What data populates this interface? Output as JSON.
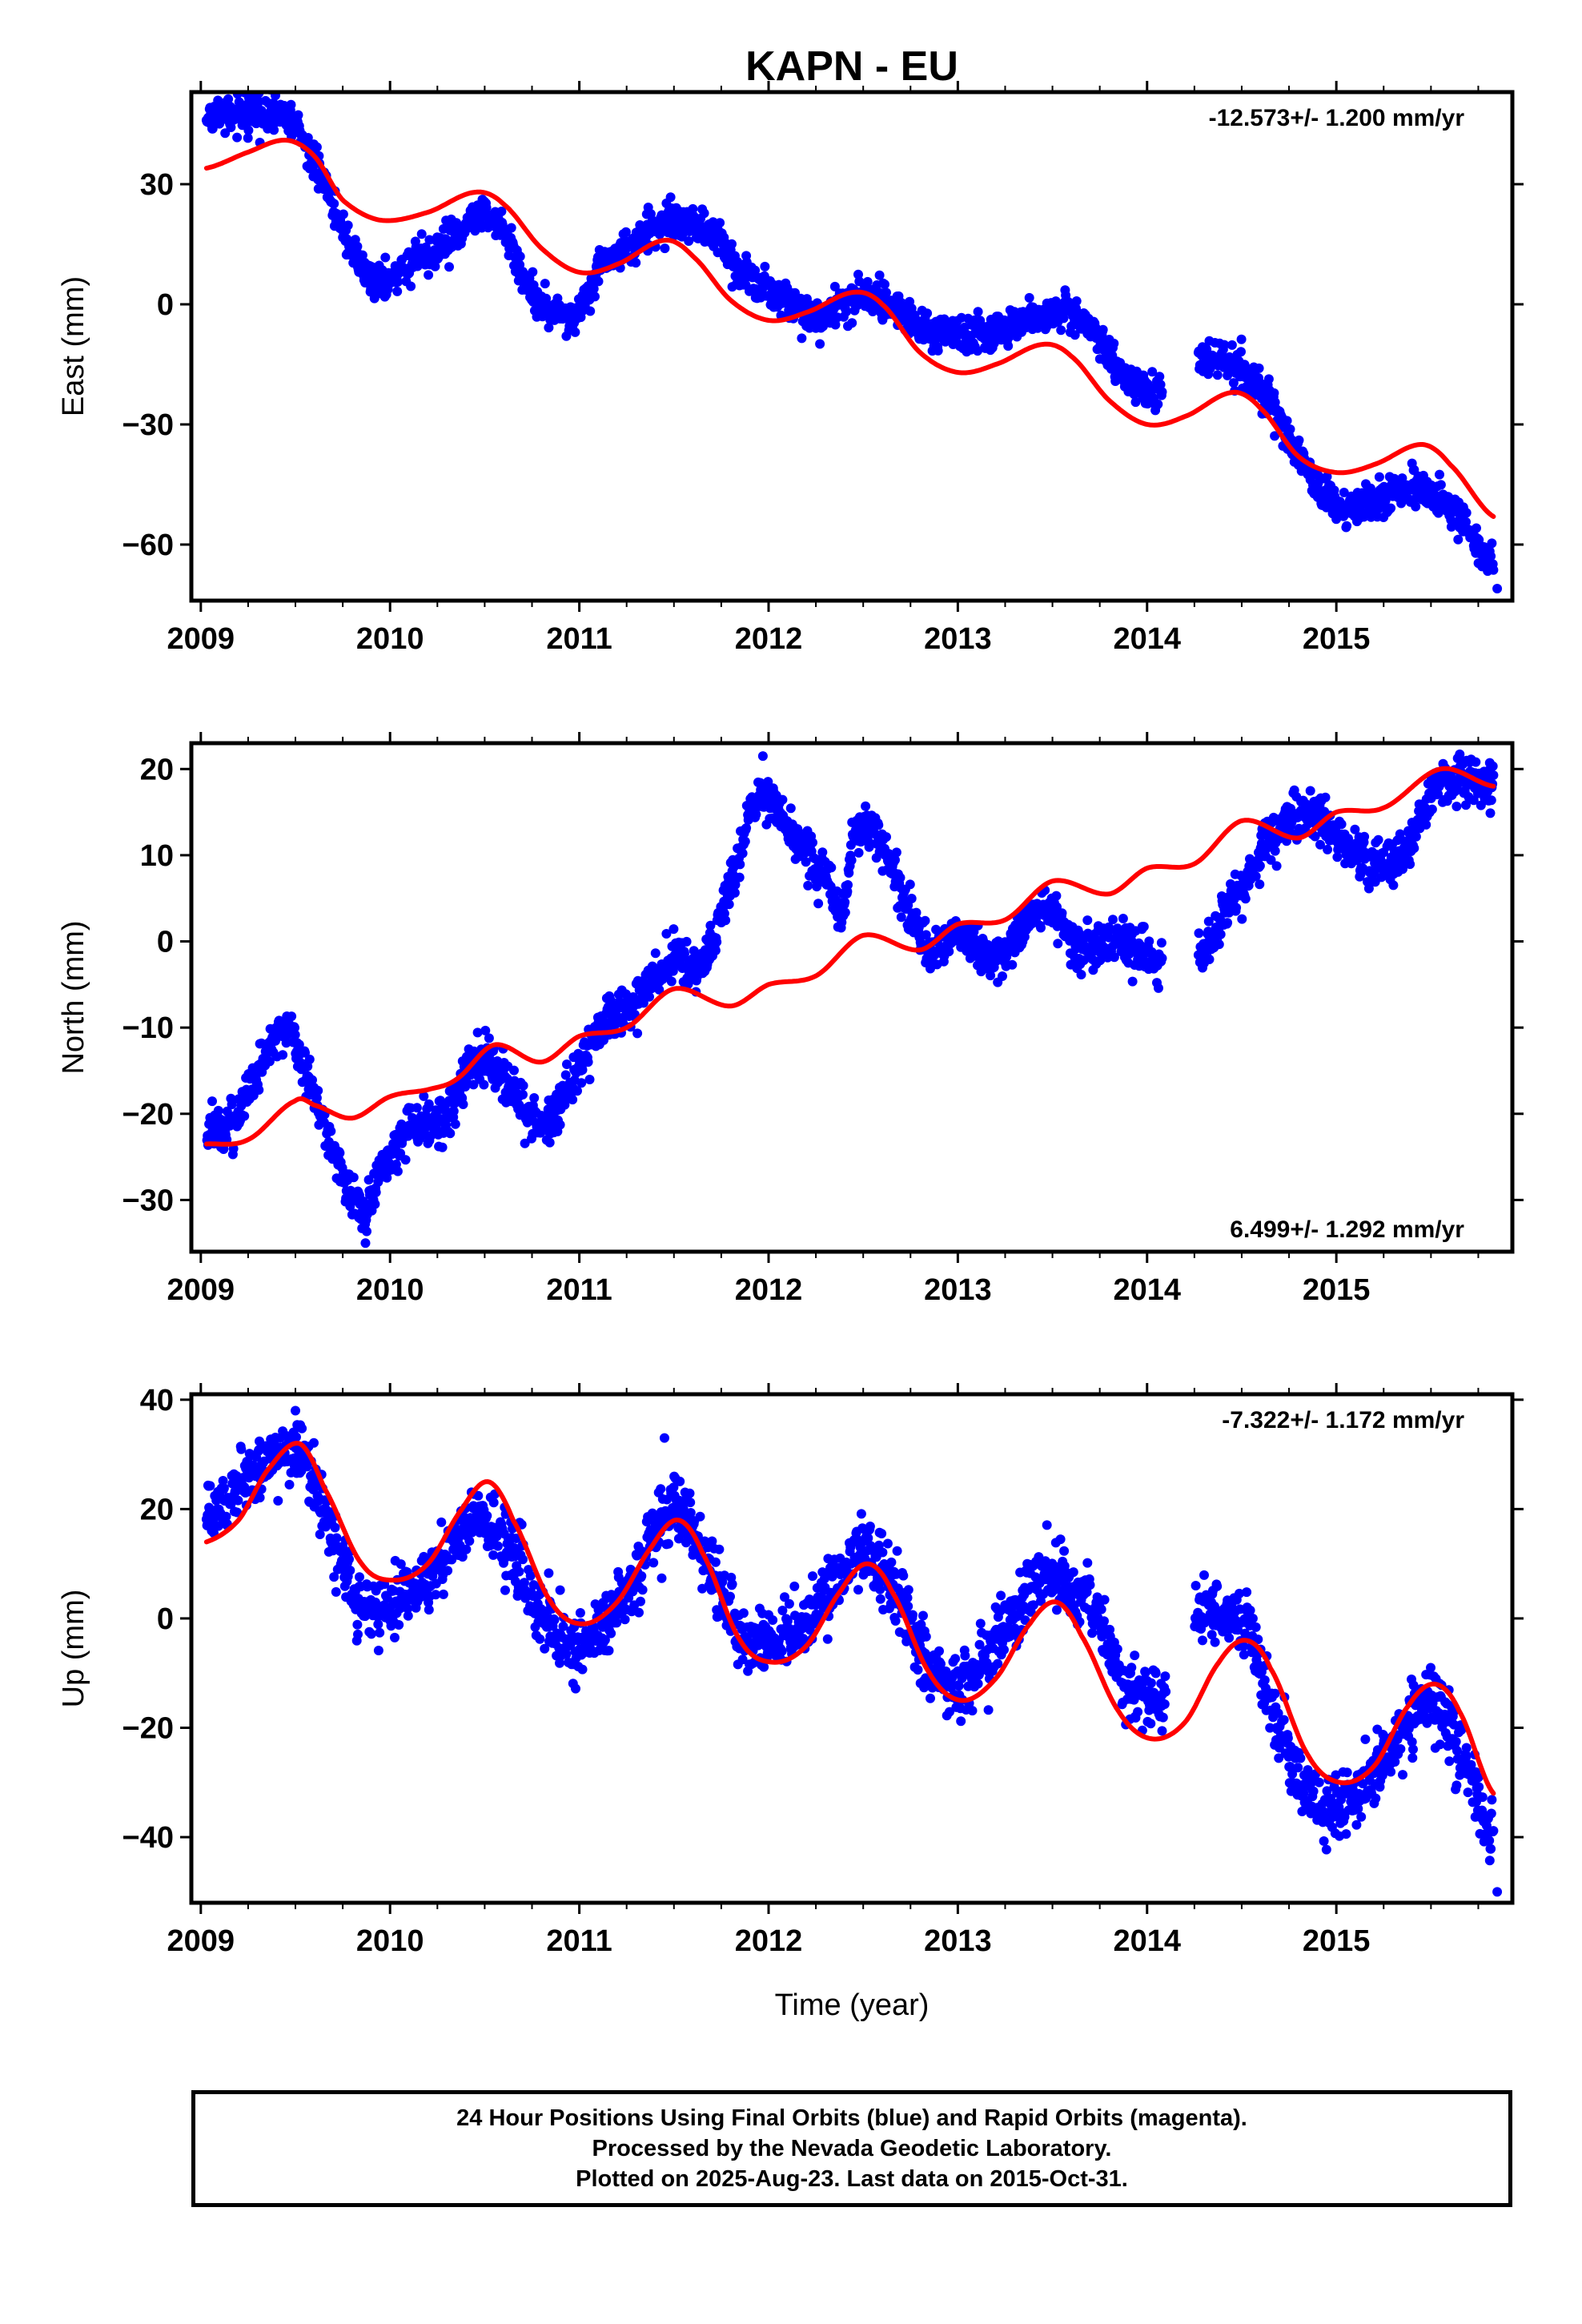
{
  "title": "KAPN - EU",
  "colors": {
    "final_orbits": "#0000ff",
    "model": "#ff0000",
    "frame": "#000000"
  },
  "chart_data": [
    {
      "type": "scatter",
      "ylabel": "East (mm)",
      "xlim": [
        2008.95,
        2015.93
      ],
      "ylim": [
        -74,
        53
      ],
      "xticks": [
        "2009",
        "2010",
        "2011",
        "2012",
        "2013",
        "2014",
        "2015"
      ],
      "yticks": [
        "30",
        "0",
        "−30",
        "−60"
      ],
      "ytick_values": [
        30,
        0,
        -30,
        -60
      ],
      "rate_text": "-12.573+/- 1.200 mm/yr",
      "rate_position": "top-right",
      "observations": {
        "name": "Final Orbits",
        "color": "#0000ff",
        "x_start": 2009.03,
        "x_end": 2015.83,
        "gaps": [
          [
            2014.08,
            2014.27
          ]
        ],
        "y_knots": [
          [
            2009.03,
            46
          ],
          [
            2009.2,
            48
          ],
          [
            2009.45,
            47
          ],
          [
            2009.55,
            40
          ],
          [
            2009.8,
            14
          ],
          [
            2009.95,
            5
          ],
          [
            2010.15,
            12
          ],
          [
            2010.3,
            15
          ],
          [
            2010.45,
            22
          ],
          [
            2010.6,
            18
          ],
          [
            2010.75,
            3
          ],
          [
            2010.9,
            -3
          ],
          [
            2011.0,
            -2
          ],
          [
            2011.1,
            9
          ],
          [
            2011.3,
            16
          ],
          [
            2011.5,
            21
          ],
          [
            2011.75,
            16
          ],
          [
            2011.85,
            8
          ],
          [
            2012.0,
            4
          ],
          [
            2012.25,
            -3
          ],
          [
            2012.45,
            2
          ],
          [
            2012.65,
            0
          ],
          [
            2012.8,
            -6
          ],
          [
            2013.2,
            -7
          ],
          [
            2013.5,
            -2
          ],
          [
            2013.7,
            -5
          ],
          [
            2013.85,
            -17
          ],
          [
            2014.08,
            -22
          ],
          [
            2014.27,
            -14
          ],
          [
            2014.5,
            -16
          ],
          [
            2014.6,
            -22
          ],
          [
            2014.8,
            -38
          ],
          [
            2015.0,
            -50
          ],
          [
            2015.2,
            -49
          ],
          [
            2015.35,
            -46
          ],
          [
            2015.5,
            -47
          ],
          [
            2015.65,
            -53
          ],
          [
            2015.83,
            -65
          ]
        ],
        "noise": 2.2,
        "outliers": [
          [
            2015.85,
            -71
          ]
        ]
      },
      "model": {
        "name": "Model",
        "color": "#ff0000",
        "x_start": 2009.03,
        "x_end": 2015.83,
        "y_knots": [
          [
            2009.03,
            34
          ],
          [
            2009.25,
            38
          ],
          [
            2009.45,
            41
          ],
          [
            2009.6,
            37
          ],
          [
            2009.75,
            26
          ],
          [
            2009.95,
            21
          ],
          [
            2010.2,
            23
          ],
          [
            2010.45,
            28
          ],
          [
            2010.6,
            25
          ],
          [
            2010.8,
            14
          ],
          [
            2011.0,
            8
          ],
          [
            2011.2,
            10
          ],
          [
            2011.45,
            16
          ],
          [
            2011.6,
            12
          ],
          [
            2011.8,
            1
          ],
          [
            2012.0,
            -4
          ],
          [
            2012.2,
            -2
          ],
          [
            2012.45,
            3
          ],
          [
            2012.6,
            0
          ],
          [
            2012.8,
            -12
          ],
          [
            2013.0,
            -17
          ],
          [
            2013.2,
            -15
          ],
          [
            2013.45,
            -10
          ],
          [
            2013.6,
            -13
          ],
          [
            2013.8,
            -24
          ],
          [
            2014.0,
            -30
          ],
          [
            2014.2,
            -28
          ],
          [
            2014.45,
            -22
          ],
          [
            2014.6,
            -26
          ],
          [
            2014.8,
            -38
          ],
          [
            2015.0,
            -42
          ],
          [
            2015.2,
            -40
          ],
          [
            2015.45,
            -35
          ],
          [
            2015.6,
            -40
          ],
          [
            2015.83,
            -53
          ]
        ]
      }
    },
    {
      "type": "scatter",
      "ylabel": "North (mm)",
      "xlim": [
        2008.95,
        2015.93
      ],
      "ylim": [
        -36,
        23
      ],
      "xticks": [
        "2009",
        "2010",
        "2011",
        "2012",
        "2013",
        "2014",
        "2015"
      ],
      "yticks": [
        "20",
        "10",
        "0",
        "−10",
        "−20",
        "−30"
      ],
      "ytick_values": [
        20,
        10,
        0,
        -10,
        -20,
        -30
      ],
      "rate_text": "6.499+/- 1.292 mm/yr",
      "rate_position": "bottom-right",
      "observations": {
        "name": "Final Orbits",
        "color": "#0000ff",
        "x_start": 2009.03,
        "x_end": 2015.83,
        "gaps": [
          [
            2014.08,
            2014.27
          ]
        ],
        "y_knots": [
          [
            2009.03,
            -22
          ],
          [
            2009.2,
            -20
          ],
          [
            2009.4,
            -11
          ],
          [
            2009.5,
            -12
          ],
          [
            2009.7,
            -24
          ],
          [
            2009.85,
            -31
          ],
          [
            2009.95,
            -27
          ],
          [
            2010.1,
            -22
          ],
          [
            2010.3,
            -20
          ],
          [
            2010.45,
            -14
          ],
          [
            2010.6,
            -16
          ],
          [
            2010.8,
            -21
          ],
          [
            2010.95,
            -17
          ],
          [
            2011.1,
            -10
          ],
          [
            2011.3,
            -7
          ],
          [
            2011.5,
            -2
          ],
          [
            2011.65,
            -3
          ],
          [
            2011.75,
            3
          ],
          [
            2011.9,
            14
          ],
          [
            2011.97,
            17
          ],
          [
            2012.1,
            13
          ],
          [
            2012.3,
            8
          ],
          [
            2012.4,
            4
          ],
          [
            2012.45,
            13
          ],
          [
            2012.6,
            11
          ],
          [
            2012.75,
            3
          ],
          [
            2012.85,
            -1
          ],
          [
            2013.0,
            1
          ],
          [
            2013.2,
            -2
          ],
          [
            2013.45,
            4
          ],
          [
            2013.65,
            -1
          ],
          [
            2013.85,
            0
          ],
          [
            2014.08,
            -2
          ],
          [
            2014.27,
            -1
          ],
          [
            2014.5,
            6
          ],
          [
            2014.65,
            12
          ],
          [
            2014.85,
            15
          ],
          [
            2015.0,
            12
          ],
          [
            2015.2,
            9
          ],
          [
            2015.35,
            10
          ],
          [
            2015.5,
            17
          ],
          [
            2015.65,
            19
          ],
          [
            2015.83,
            18
          ]
        ],
        "noise": 1.3,
        "outliers": [
          [
            2009.87,
            -35
          ],
          [
            2011.97,
            21.5
          ]
        ]
      },
      "model": {
        "name": "Model",
        "color": "#ff0000",
        "x_start": 2009.03,
        "x_end": 2015.83,
        "y_knots": [
          [
            2009.03,
            -23.5
          ],
          [
            2009.25,
            -23
          ],
          [
            2009.5,
            -18.5
          ],
          [
            2009.6,
            -19
          ],
          [
            2009.8,
            -20.5
          ],
          [
            2010.0,
            -18
          ],
          [
            2010.2,
            -17.2
          ],
          [
            2010.35,
            -16
          ],
          [
            2010.55,
            -12
          ],
          [
            2010.8,
            -14
          ],
          [
            2011.0,
            -11
          ],
          [
            2011.25,
            -10
          ],
          [
            2011.5,
            -5.5
          ],
          [
            2011.8,
            -7.5
          ],
          [
            2012.0,
            -5
          ],
          [
            2012.25,
            -4
          ],
          [
            2012.5,
            0.7
          ],
          [
            2012.8,
            -1
          ],
          [
            2013.0,
            2
          ],
          [
            2013.25,
            2.5
          ],
          [
            2013.5,
            7
          ],
          [
            2013.8,
            5.5
          ],
          [
            2014.0,
            8.5
          ],
          [
            2014.25,
            9
          ],
          [
            2014.5,
            14
          ],
          [
            2014.8,
            12
          ],
          [
            2015.0,
            15
          ],
          [
            2015.25,
            15.5
          ],
          [
            2015.55,
            20
          ],
          [
            2015.83,
            18
          ]
        ]
      }
    },
    {
      "type": "scatter",
      "ylabel": "Up (mm)",
      "xlabel": "Time (year)",
      "xlim": [
        2008.95,
        2015.93
      ],
      "ylim": [
        -52,
        41
      ],
      "xticks": [
        "2009",
        "2010",
        "2011",
        "2012",
        "2013",
        "2014",
        "2015"
      ],
      "yticks": [
        "40",
        "20",
        "0",
        "−20",
        "−40"
      ],
      "ytick_values": [
        40,
        20,
        0,
        -20,
        -40
      ],
      "rate_text": "-7.322+/- 1.172 mm/yr",
      "rate_position": "top-right",
      "observations": {
        "name": "Final Orbits",
        "color": "#0000ff",
        "x_start": 2009.03,
        "x_end": 2015.83,
        "gaps": [
          [
            2014.1,
            2014.25
          ]
        ],
        "y_knots": [
          [
            2009.03,
            20
          ],
          [
            2009.2,
            24
          ],
          [
            2009.5,
            31
          ],
          [
            2009.65,
            20
          ],
          [
            2009.85,
            2
          ],
          [
            2010.0,
            3
          ],
          [
            2010.2,
            8
          ],
          [
            2010.45,
            18
          ],
          [
            2010.6,
            14
          ],
          [
            2010.85,
            -2
          ],
          [
            2011.0,
            -6
          ],
          [
            2011.2,
            2
          ],
          [
            2011.5,
            20
          ],
          [
            2011.65,
            12
          ],
          [
            2011.85,
            -2
          ],
          [
            2012.0,
            -4
          ],
          [
            2012.2,
            0
          ],
          [
            2012.5,
            12
          ],
          [
            2012.65,
            6
          ],
          [
            2012.85,
            -8
          ],
          [
            2013.0,
            -12
          ],
          [
            2013.2,
            -4
          ],
          [
            2013.5,
            8
          ],
          [
            2013.7,
            2
          ],
          [
            2013.9,
            -12
          ],
          [
            2014.1,
            -14
          ],
          [
            2014.25,
            0
          ],
          [
            2014.5,
            0
          ],
          [
            2014.6,
            -10
          ],
          [
            2014.8,
            -30
          ],
          [
            2015.0,
            -35
          ],
          [
            2015.2,
            -28
          ],
          [
            2015.5,
            -15
          ],
          [
            2015.65,
            -24
          ],
          [
            2015.83,
            -40
          ]
        ],
        "noise": 3.0,
        "outliers": [
          [
            2015.85,
            -50
          ],
          [
            2009.5,
            38
          ],
          [
            2011.45,
            33
          ]
        ]
      },
      "model": {
        "name": "Model",
        "color": "#ff0000",
        "x_start": 2009.03,
        "x_end": 2015.83,
        "y_knots": [
          [
            2009.03,
            14
          ],
          [
            2009.2,
            18
          ],
          [
            2009.35,
            27
          ],
          [
            2009.52,
            32
          ],
          [
            2009.65,
            24
          ],
          [
            2009.85,
            10
          ],
          [
            2010.02,
            7
          ],
          [
            2010.2,
            10
          ],
          [
            2010.38,
            20
          ],
          [
            2010.52,
            25
          ],
          [
            2010.65,
            18
          ],
          [
            2010.85,
            3
          ],
          [
            2011.02,
            -1
          ],
          [
            2011.2,
            3
          ],
          [
            2011.38,
            13
          ],
          [
            2011.52,
            18
          ],
          [
            2011.65,
            12
          ],
          [
            2011.85,
            -4
          ],
          [
            2012.02,
            -8
          ],
          [
            2012.2,
            -5
          ],
          [
            2012.38,
            5
          ],
          [
            2012.52,
            10
          ],
          [
            2012.65,
            5
          ],
          [
            2012.85,
            -10
          ],
          [
            2013.02,
            -15
          ],
          [
            2013.2,
            -11
          ],
          [
            2013.38,
            -1
          ],
          [
            2013.52,
            3
          ],
          [
            2013.65,
            -3
          ],
          [
            2013.85,
            -17
          ],
          [
            2014.02,
            -22
          ],
          [
            2014.2,
            -19
          ],
          [
            2014.38,
            -8
          ],
          [
            2014.52,
            -4
          ],
          [
            2014.65,
            -9
          ],
          [
            2014.85,
            -25
          ],
          [
            2015.02,
            -30
          ],
          [
            2015.2,
            -27
          ],
          [
            2015.38,
            -16
          ],
          [
            2015.52,
            -12
          ],
          [
            2015.65,
            -17
          ],
          [
            2015.83,
            -32
          ]
        ]
      }
    }
  ],
  "caption": {
    "line1": "24 Hour Positions Using Final Orbits (blue) and Rapid Orbits (magenta).",
    "line2": "Processed by the Nevada Geodetic Laboratory.",
    "line3": "Plotted on 2025-Aug-23. Last data on 2015-Oct-31."
  }
}
